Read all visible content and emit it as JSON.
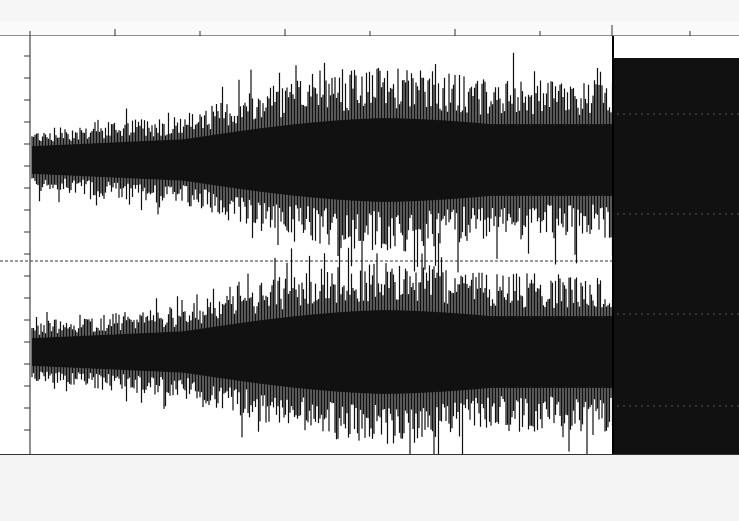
{
  "window": {
    "title": "",
    "right_label": ""
  },
  "status": {
    "left_lines": [
      "",
      "",
      "",
      ""
    ],
    "mid": "",
    "right_lines": [
      "",
      "",
      ""
    ]
  },
  "waveform": {
    "channels": 2,
    "selection_start_fraction": 0.83,
    "selection_color": "#111111",
    "wave_color": "#111111",
    "background": "#ffffff"
  }
}
